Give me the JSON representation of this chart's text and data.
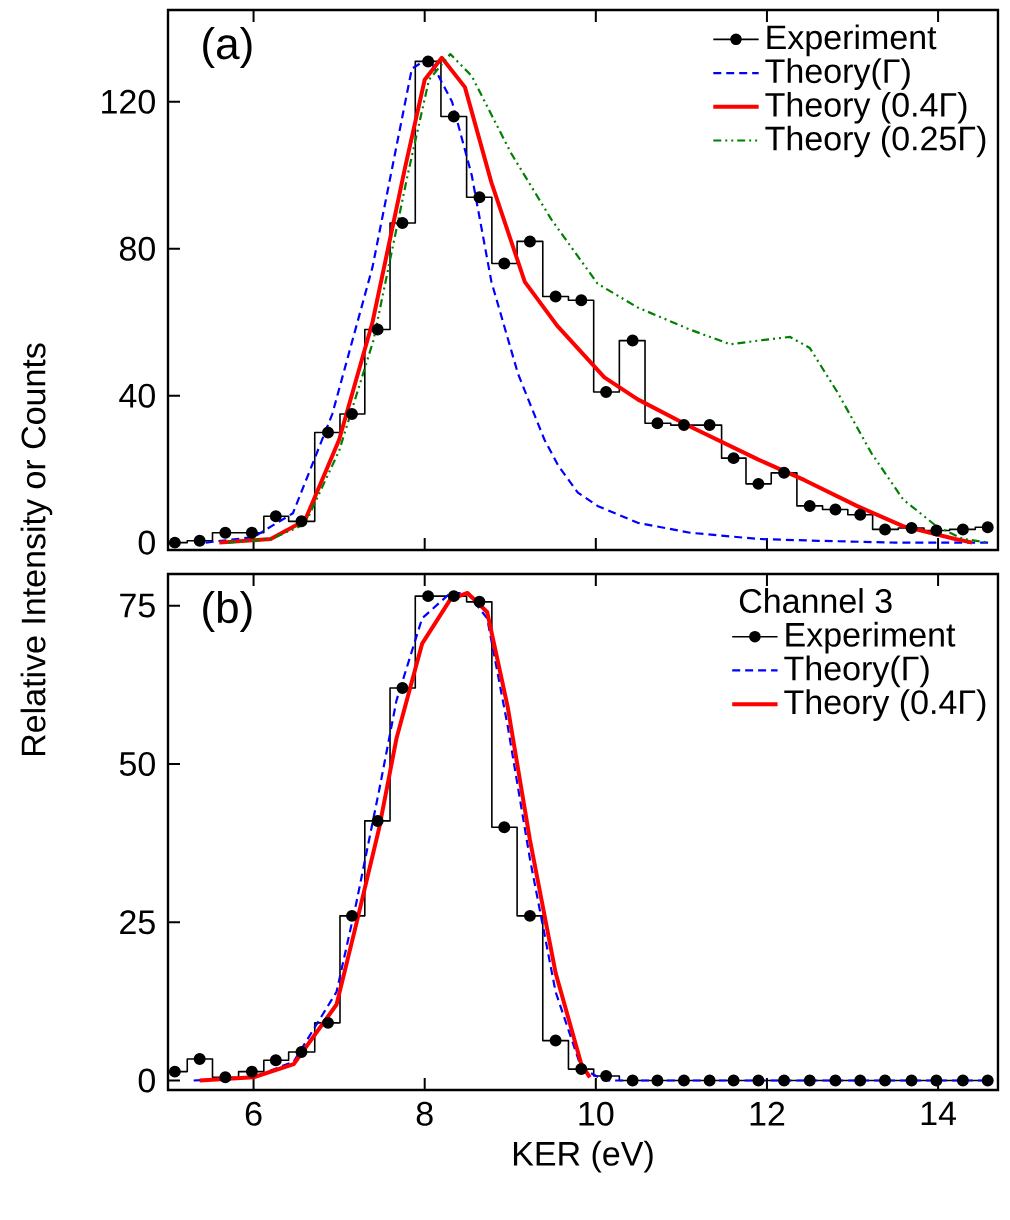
{
  "chart_data": [
    {
      "type": "line",
      "annotations": [
        "(a)"
      ],
      "ylabel": "Relative Intensity or Counts",
      "xlim": [
        5,
        14.7
      ],
      "xticks": [
        6,
        8,
        10,
        12,
        14
      ],
      "ylim": [
        -2,
        145
      ],
      "yticks": [
        0,
        40,
        80,
        120
      ],
      "tick_labels": "y",
      "legend": "top right",
      "series": [
        {
          "name": "Experiment",
          "type": "step",
          "color": "#000000",
          "marker": "circle",
          "x": [
            5.08,
            5.37,
            5.67,
            5.98,
            6.26,
            6.56,
            6.87,
            7.15,
            7.45,
            7.74,
            8.04,
            8.34,
            8.64,
            8.93,
            9.23,
            9.53,
            9.83,
            10.12,
            10.43,
            10.72,
            11.03,
            11.33,
            11.61,
            11.9,
            12.2,
            12.5,
            12.8,
            13.09,
            13.38,
            13.69,
            13.98,
            14.29,
            14.58
          ],
          "values": [
            0,
            0.5,
            2.7,
            2.7,
            7.2,
            5.8,
            30,
            35,
            58,
            87,
            131,
            116,
            94,
            76,
            82,
            67,
            66,
            41,
            55,
            32.5,
            32,
            32,
            23,
            16,
            19,
            10,
            9,
            7.6,
            3.6,
            4,
            3.3,
            3.6,
            4.2
          ]
        },
        {
          "name": "Theory(Γ)",
          "type": "line",
          "color": "#0000ff",
          "line_style": "dashed",
          "x": [
            5.44,
            6.0,
            6.46,
            6.92,
            7.39,
            7.62,
            7.85,
            8.05,
            8.32,
            8.55,
            8.78,
            9.09,
            9.4,
            9.56,
            9.79,
            10.02,
            10.49,
            11.1,
            11.9,
            12.6,
            13.5,
            14.6
          ],
          "values": [
            0,
            1.5,
            8,
            35,
            75,
            102,
            129,
            132,
            120,
            100,
            71,
            46,
            28,
            21,
            13.6,
            10,
            5.4,
            2.7,
            1,
            0.5,
            0,
            0
          ]
        },
        {
          "name": "Theory (0.4Γ)",
          "type": "line",
          "color": "#ff0000",
          "x": [
            5.6,
            6.2,
            6.6,
            7.0,
            7.39,
            7.77,
            8.0,
            8.2,
            8.47,
            8.78,
            9.17,
            9.55,
            10.1,
            10.49,
            11.1,
            11.9,
            12.44,
            13.05,
            13.59,
            14.2,
            14.4
          ],
          "values": [
            0,
            1,
            6,
            28,
            60,
            102,
            126,
            132,
            124,
            98,
            71,
            59,
            45,
            39,
            31.6,
            22.6,
            17,
            10,
            4.5,
            1,
            0
          ]
        },
        {
          "name": "Theory (0.25Γ)",
          "type": "line",
          "color": "#008000",
          "line_style": "dashdotdot",
          "x": [
            5.7,
            6.2,
            6.6,
            7.0,
            7.4,
            7.8,
            8.05,
            8.3,
            8.55,
            9.01,
            9.48,
            10.02,
            10.49,
            11.1,
            11.57,
            11.9,
            12.27,
            12.5,
            12.83,
            13.22,
            13.59,
            13.98,
            14.29,
            14.6
          ],
          "values": [
            0,
            1,
            5,
            25,
            55,
            100,
            126,
            133,
            127,
            106,
            88,
            70.5,
            64,
            58,
            54,
            55,
            56,
            53,
            40.7,
            24.4,
            11.8,
            4.5,
            1,
            0
          ]
        }
      ]
    },
    {
      "type": "line",
      "annotations": [
        "(b)"
      ],
      "xlabel": "KER (eV)",
      "legend_title": "Channel 3",
      "xlim": [
        5,
        14.7
      ],
      "xticks": [
        6,
        8,
        10,
        12,
        14
      ],
      "ylim": [
        -1.5,
        80
      ],
      "yticks": [
        0,
        25,
        50,
        75
      ],
      "legend": "top right",
      "series": [
        {
          "name": "Experiment",
          "type": "step",
          "color": "#000000",
          "marker": "circle",
          "x": [
            5.08,
            5.37,
            5.67,
            5.98,
            6.26,
            6.56,
            6.87,
            7.15,
            7.45,
            7.74,
            8.04,
            8.34,
            8.64,
            8.93,
            9.23,
            9.53,
            9.83,
            10.12,
            10.43,
            10.72,
            11.03,
            11.33,
            11.61,
            11.9,
            12.2,
            12.5,
            12.8,
            13.09,
            13.38,
            13.69,
            13.98,
            14.29,
            14.58
          ],
          "values": [
            1.4,
            3.4,
            0.5,
            1.4,
            3.2,
            4.5,
            9.1,
            26,
            41,
            62,
            76.5,
            76.5,
            75.6,
            40,
            26,
            6.3,
            1.8,
            0.7,
            0,
            0,
            0,
            0,
            0,
            0,
            0,
            0,
            0,
            0,
            0,
            0,
            0,
            0,
            0
          ]
        },
        {
          "name": "Theory(Γ)",
          "type": "line",
          "color": "#0000ff",
          "line_style": "dashed",
          "x": [
            5.3,
            6.0,
            6.47,
            6.97,
            7.2,
            7.47,
            7.67,
            7.97,
            8.3,
            8.5,
            8.73,
            8.97,
            9.23,
            9.53,
            9.83,
            10.1,
            12.0,
            14.6
          ],
          "values": [
            0,
            0.5,
            3,
            14,
            28,
            46,
            60,
            73,
            77,
            77,
            73,
            56,
            35,
            14,
            2,
            0,
            0,
            0
          ]
        },
        {
          "name": "Theory (0.4Γ)",
          "type": "line",
          "color": "#ff0000",
          "x": [
            5.37,
            6.0,
            6.47,
            6.97,
            7.2,
            7.47,
            7.67,
            7.97,
            8.3,
            8.5,
            8.73,
            8.97,
            9.23,
            9.53,
            9.83,
            9.93
          ],
          "values": [
            0,
            0.5,
            2.6,
            12,
            24.7,
            40,
            54,
            69,
            76,
            77,
            74,
            59,
            38,
            17,
            2.6,
            0.5
          ]
        }
      ]
    }
  ]
}
